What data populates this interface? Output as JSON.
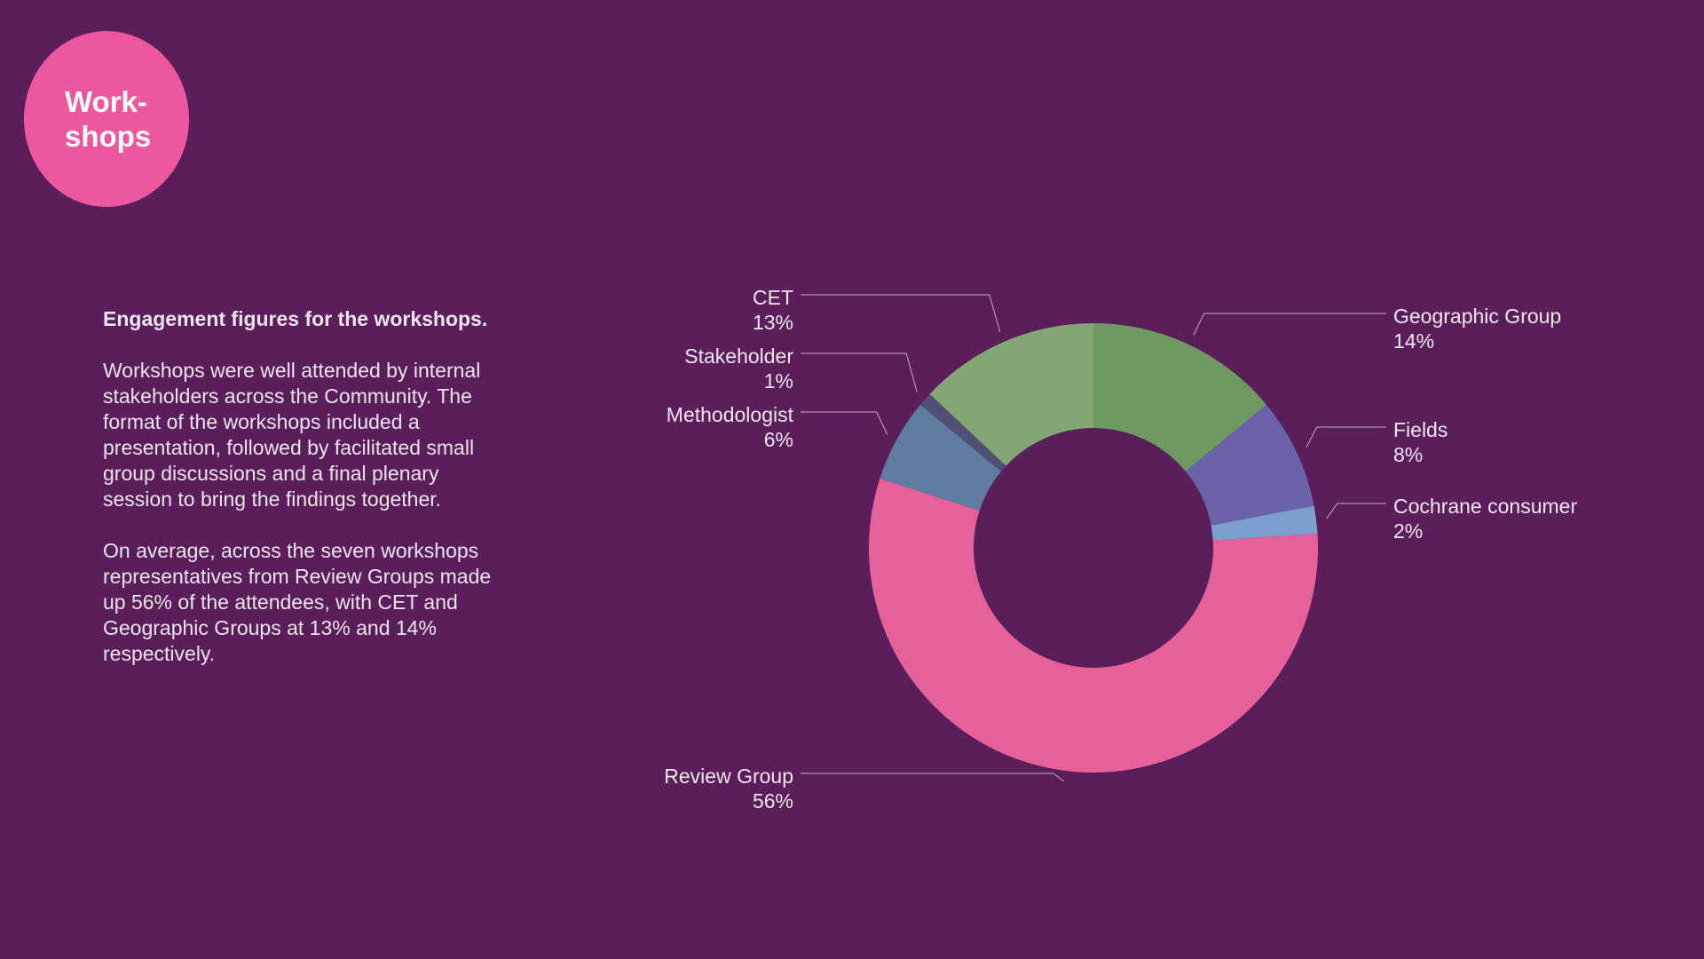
{
  "badge": {
    "line1": "Work-",
    "line2": "shops",
    "color": "#ec579e"
  },
  "text": {
    "heading": "Engagement figures for the workshops.",
    "paragraph1": "Workshops were well attended by internal stakeholders across the Community. The format of the workshops included a presentation, followed by facilitated small group discussions and a final plenary session to bring the findings together.",
    "paragraph2": "On average, across the seven workshops representatives from Review Groups made up 56% of the attendees, with CET and Geographic Groups at 13% and 14% respectively."
  },
  "chart_data": {
    "type": "pie",
    "donut": true,
    "title": "",
    "slices": [
      {
        "name": "Geographic Group",
        "value": 14,
        "label": "14%",
        "color": "#6e9a62"
      },
      {
        "name": "Fields",
        "value": 8,
        "label": "8%",
        "color": "#6c62aa"
      },
      {
        "name": "Cochrane consumer",
        "value": 2,
        "label": "2%",
        "color": "#7a9fcf"
      },
      {
        "name": "Review Group",
        "value": 56,
        "label": "56%",
        "color": "#e66199"
      },
      {
        "name": "Methodologist",
        "value": 6,
        "label": "6%",
        "color": "#607ca0"
      },
      {
        "name": "Stakeholder",
        "value": 1,
        "label": "1%",
        "color": "#4e5076"
      },
      {
        "name": "CET",
        "value": 13,
        "label": "13%",
        "color": "#82a775"
      }
    ]
  }
}
